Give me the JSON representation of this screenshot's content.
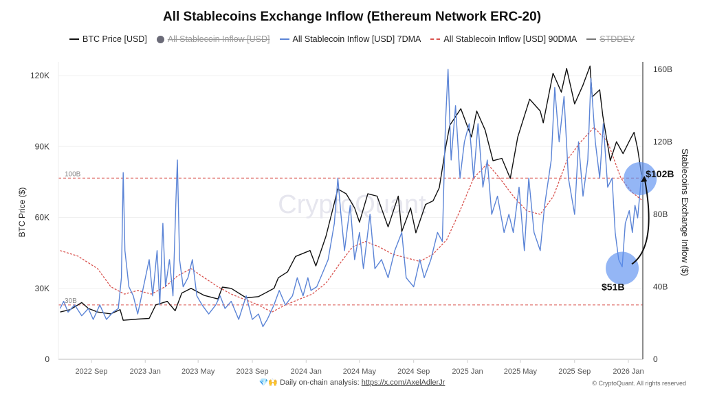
{
  "chart_data": {
    "type": "line",
    "title": "All Stablecoins Exchange Inflow (Ethereum Network ERC-20)",
    "ylabel_left": "BTC Price ($)",
    "ylabel_right": "Stablecoins Exchange Inflow ($)",
    "left_ticks": [
      "0",
      "30K",
      "60K",
      "90K",
      "120K"
    ],
    "left_tick_values": [
      0,
      30000,
      60000,
      90000,
      120000
    ],
    "right_ticks": [
      "0",
      "40B",
      "80B",
      "120B",
      "160B"
    ],
    "right_tick_values": [
      0,
      40,
      80,
      120,
      160
    ],
    "x_ticks": [
      "2022 Sep",
      "2023 Jan",
      "2023 May",
      "2023 Sep",
      "2024 Jan",
      "2024 May",
      "2024 Sep",
      "2025 Jan",
      "2025 May",
      "2025 Sep",
      "2026 Jan"
    ],
    "x_tick_dates": [
      "2022-09-01",
      "2023-01-01",
      "2023-05-01",
      "2023-09-01",
      "2024-01-01",
      "2024-05-01",
      "2024-09-01",
      "2025-01-01",
      "2025-05-01",
      "2025-09-01",
      "2026-01-01"
    ],
    "xlim": [
      "2022-06-22",
      "2026-01-31"
    ],
    "ylim_left": [
      0,
      124000
    ],
    "ylim_right": [
      0,
      165
    ],
    "grid": true,
    "legend_placement": "top",
    "legend": [
      {
        "label": "BTC Price [USD]",
        "color": "#111111",
        "style": "solid",
        "hidden": false
      },
      {
        "label": "All Stablecoin Inflow [USD]",
        "color": "#6b6b78",
        "style": "dot",
        "hidden": true
      },
      {
        "label": "All Stablecoin Inflow [USD] 7DMA",
        "color": "#5b84d6",
        "style": "solid",
        "hidden": false
      },
      {
        "label": "All Stablecoin Inflow [USD] 90DMA",
        "color": "#d9534f",
        "style": "dashed",
        "hidden": false
      },
      {
        "label": "STDDEV",
        "color": "#555555",
        "style": "solid",
        "hidden": true
      }
    ],
    "reference_lines": [
      {
        "label": "100B",
        "value": 100
      },
      {
        "label": "30B",
        "value": 30
      }
    ],
    "annotations": [
      {
        "label": "$102B",
        "value": 102,
        "date": "2026-01-31"
      },
      {
        "label": "$51B",
        "value": 51,
        "date": "2025-12-18"
      }
    ],
    "watermark": "CryptoQuant",
    "series": [
      {
        "name": "BTC Price [USD]",
        "axis": "left",
        "color": "#111111",
        "points": [
          [
            "2022-06-22",
            20000
          ],
          [
            "2022-07-15",
            21000
          ],
          [
            "2022-08-10",
            24000
          ],
          [
            "2022-08-25",
            21500
          ],
          [
            "2022-09-15",
            20000
          ],
          [
            "2022-10-15",
            19200
          ],
          [
            "2022-11-05",
            21000
          ],
          [
            "2022-11-12",
            16500
          ],
          [
            "2022-12-15",
            17000
          ],
          [
            "2023-01-10",
            17300
          ],
          [
            "2023-01-25",
            23000
          ],
          [
            "2023-02-20",
            24500
          ],
          [
            "2023-03-10",
            20500
          ],
          [
            "2023-03-25",
            28000
          ],
          [
            "2023-04-15",
            30000
          ],
          [
            "2023-05-15",
            27000
          ],
          [
            "2023-06-15",
            25500
          ],
          [
            "2023-06-25",
            30500
          ],
          [
            "2023-07-15",
            30000
          ],
          [
            "2023-08-18",
            26000
          ],
          [
            "2023-09-15",
            26500
          ],
          [
            "2023-10-20",
            30000
          ],
          [
            "2023-10-30",
            34500
          ],
          [
            "2023-11-20",
            37000
          ],
          [
            "2023-12-08",
            43500
          ],
          [
            "2024-01-10",
            46000
          ],
          [
            "2024-01-23",
            39500
          ],
          [
            "2024-02-15",
            52000
          ],
          [
            "2024-03-13",
            72000
          ],
          [
            "2024-04-01",
            70000
          ],
          [
            "2024-04-20",
            64000
          ],
          [
            "2024-05-01",
            58000
          ],
          [
            "2024-05-20",
            70000
          ],
          [
            "2024-06-10",
            69000
          ],
          [
            "2024-07-05",
            56000
          ],
          [
            "2024-07-28",
            69000
          ],
          [
            "2024-08-05",
            54000
          ],
          [
            "2024-08-25",
            64000
          ],
          [
            "2024-09-06",
            53500
          ],
          [
            "2024-09-28",
            65500
          ],
          [
            "2024-10-15",
            67000
          ],
          [
            "2024-10-29",
            72500
          ],
          [
            "2024-11-13",
            90000
          ],
          [
            "2024-11-22",
            99000
          ],
          [
            "2024-12-17",
            106000
          ],
          [
            "2025-01-10",
            94000
          ],
          [
            "2025-01-22",
            105000
          ],
          [
            "2025-02-10",
            97000
          ],
          [
            "2025-02-28",
            84000
          ],
          [
            "2025-03-20",
            85000
          ],
          [
            "2025-04-08",
            76500
          ],
          [
            "2025-04-25",
            94000
          ],
          [
            "2025-05-22",
            110000
          ],
          [
            "2025-06-15",
            105000
          ],
          [
            "2025-06-22",
            100000
          ],
          [
            "2025-07-14",
            121000
          ],
          [
            "2025-08-02",
            113000
          ],
          [
            "2025-08-14",
            123000
          ],
          [
            "2025-09-01",
            108000
          ],
          [
            "2025-09-20",
            116000
          ],
          [
            "2025-10-06",
            124000
          ],
          [
            "2025-10-11",
            111000
          ],
          [
            "2025-10-28",
            114000
          ],
          [
            "2025-11-04",
            103000
          ],
          [
            "2025-11-21",
            84000
          ],
          [
            "2025-12-05",
            92000
          ],
          [
            "2025-12-20",
            87000
          ],
          [
            "2026-01-05",
            93000
          ],
          [
            "2026-01-14",
            96000
          ],
          [
            "2026-01-22",
            89000
          ],
          [
            "2026-01-31",
            78000
          ]
        ]
      },
      {
        "name": "All Stablecoin Inflow [USD] 7DMA",
        "axis": "right",
        "color": "#5b84d6",
        "points": [
          [
            "2022-06-22",
            28
          ],
          [
            "2022-06-30",
            32
          ],
          [
            "2022-07-10",
            26
          ],
          [
            "2022-07-25",
            30
          ],
          [
            "2022-08-10",
            24
          ],
          [
            "2022-08-25",
            28
          ],
          [
            "2022-09-05",
            22
          ],
          [
            "2022-09-20",
            30
          ],
          [
            "2022-10-05",
            22
          ],
          [
            "2022-10-20",
            26
          ],
          [
            "2022-11-01",
            28
          ],
          [
            "2022-11-08",
            45
          ],
          [
            "2022-11-12",
            103
          ],
          [
            "2022-11-16",
            60
          ],
          [
            "2022-11-25",
            40
          ],
          [
            "2022-12-05",
            35
          ],
          [
            "2022-12-15",
            25
          ],
          [
            "2022-12-28",
            40
          ],
          [
            "2023-01-10",
            55
          ],
          [
            "2023-01-18",
            35
          ],
          [
            "2023-01-28",
            60
          ],
          [
            "2023-02-03",
            30
          ],
          [
            "2023-02-10",
            75
          ],
          [
            "2023-02-16",
            40
          ],
          [
            "2023-02-25",
            55
          ],
          [
            "2023-03-05",
            35
          ],
          [
            "2023-03-12",
            90
          ],
          [
            "2023-03-15",
            110
          ],
          [
            "2023-03-20",
            55
          ],
          [
            "2023-03-28",
            40
          ],
          [
            "2023-04-08",
            45
          ],
          [
            "2023-04-18",
            55
          ],
          [
            "2023-04-28",
            35
          ],
          [
            "2023-05-10",
            30
          ],
          [
            "2023-05-25",
            25
          ],
          [
            "2023-06-10",
            30
          ],
          [
            "2023-06-20",
            35
          ],
          [
            "2023-07-01",
            28
          ],
          [
            "2023-07-15",
            32
          ],
          [
            "2023-08-01",
            22
          ],
          [
            "2023-08-18",
            35
          ],
          [
            "2023-09-01",
            22
          ],
          [
            "2023-09-15",
            25
          ],
          [
            "2023-09-25",
            18
          ],
          [
            "2023-10-05",
            22
          ],
          [
            "2023-10-20",
            30
          ],
          [
            "2023-11-01",
            38
          ],
          [
            "2023-11-15",
            30
          ],
          [
            "2023-12-01",
            35
          ],
          [
            "2023-12-12",
            45
          ],
          [
            "2023-12-25",
            35
          ],
          [
            "2024-01-05",
            45
          ],
          [
            "2024-01-12",
            38
          ],
          [
            "2024-01-25",
            40
          ],
          [
            "2024-02-08",
            48
          ],
          [
            "2024-02-20",
            55
          ],
          [
            "2024-03-05",
            75
          ],
          [
            "2024-03-13",
            100
          ],
          [
            "2024-03-20",
            80
          ],
          [
            "2024-03-28",
            60
          ],
          [
            "2024-04-10",
            85
          ],
          [
            "2024-04-20",
            55
          ],
          [
            "2024-05-01",
            70
          ],
          [
            "2024-05-10",
            50
          ],
          [
            "2024-05-25",
            80
          ],
          [
            "2024-06-05",
            50
          ],
          [
            "2024-06-20",
            55
          ],
          [
            "2024-07-05",
            45
          ],
          [
            "2024-07-20",
            60
          ],
          [
            "2024-08-05",
            70
          ],
          [
            "2024-08-15",
            45
          ],
          [
            "2024-09-01",
            40
          ],
          [
            "2024-09-15",
            55
          ],
          [
            "2024-09-25",
            45
          ],
          [
            "2024-10-10",
            55
          ],
          [
            "2024-10-25",
            70
          ],
          [
            "2024-11-05",
            65
          ],
          [
            "2024-11-12",
            130
          ],
          [
            "2024-11-18",
            160
          ],
          [
            "2024-11-25",
            110
          ],
          [
            "2024-12-05",
            140
          ],
          [
            "2024-12-15",
            100
          ],
          [
            "2024-12-25",
            120
          ],
          [
            "2025-01-05",
            130
          ],
          [
            "2025-01-15",
            100
          ],
          [
            "2025-01-25",
            130
          ],
          [
            "2025-02-05",
            95
          ],
          [
            "2025-02-15",
            110
          ],
          [
            "2025-02-25",
            80
          ],
          [
            "2025-03-10",
            90
          ],
          [
            "2025-03-25",
            70
          ],
          [
            "2025-04-05",
            80
          ],
          [
            "2025-04-15",
            70
          ],
          [
            "2025-04-28",
            95
          ],
          [
            "2025-05-10",
            60
          ],
          [
            "2025-05-20",
            100
          ],
          [
            "2025-06-01",
            70
          ],
          [
            "2025-06-15",
            60
          ],
          [
            "2025-06-25",
            85
          ],
          [
            "2025-07-10",
            110
          ],
          [
            "2025-07-18",
            150
          ],
          [
            "2025-07-28",
            120
          ],
          [
            "2025-08-08",
            145
          ],
          [
            "2025-08-18",
            100
          ],
          [
            "2025-09-01",
            80
          ],
          [
            "2025-09-10",
            120
          ],
          [
            "2025-09-20",
            90
          ],
          [
            "2025-10-01",
            110
          ],
          [
            "2025-10-08",
            155
          ],
          [
            "2025-10-18",
            120
          ],
          [
            "2025-10-28",
            100
          ],
          [
            "2025-11-05",
            130
          ],
          [
            "2025-11-15",
            95
          ],
          [
            "2025-11-25",
            100
          ],
          [
            "2025-12-02",
            70
          ],
          [
            "2025-12-10",
            55
          ],
          [
            "2025-12-18",
            51
          ],
          [
            "2025-12-25",
            75
          ],
          [
            "2026-01-03",
            82
          ],
          [
            "2026-01-10",
            70
          ],
          [
            "2026-01-16",
            85
          ],
          [
            "2026-01-22",
            78
          ],
          [
            "2026-01-31",
            102
          ]
        ]
      },
      {
        "name": "All Stablecoin Inflow [USD] 90DMA",
        "axis": "right",
        "color": "#d9534f",
        "points": [
          [
            "2022-06-22",
            60
          ],
          [
            "2022-08-01",
            57
          ],
          [
            "2022-09-15",
            50
          ],
          [
            "2022-10-15",
            40
          ],
          [
            "2022-11-15",
            36
          ],
          [
            "2022-12-15",
            38
          ],
          [
            "2023-01-15",
            36
          ],
          [
            "2023-02-15",
            40
          ],
          [
            "2023-03-15",
            46
          ],
          [
            "2023-04-15",
            50
          ],
          [
            "2023-05-15",
            45
          ],
          [
            "2023-06-15",
            40
          ],
          [
            "2023-07-15",
            36
          ],
          [
            "2023-08-15",
            33
          ],
          [
            "2023-09-15",
            30
          ],
          [
            "2023-10-15",
            26
          ],
          [
            "2023-11-15",
            30
          ],
          [
            "2023-12-15",
            33
          ],
          [
            "2024-01-15",
            36
          ],
          [
            "2024-02-15",
            42
          ],
          [
            "2024-03-15",
            52
          ],
          [
            "2024-04-15",
            62
          ],
          [
            "2024-05-15",
            65
          ],
          [
            "2024-06-15",
            62
          ],
          [
            "2024-07-15",
            58
          ],
          [
            "2024-08-15",
            56
          ],
          [
            "2024-09-15",
            54
          ],
          [
            "2024-10-15",
            58
          ],
          [
            "2024-11-15",
            66
          ],
          [
            "2024-12-15",
            82
          ],
          [
            "2025-01-15",
            100
          ],
          [
            "2025-02-15",
            108
          ],
          [
            "2025-03-15",
            100
          ],
          [
            "2025-04-15",
            90
          ],
          [
            "2025-05-15",
            82
          ],
          [
            "2025-06-15",
            80
          ],
          [
            "2025-07-15",
            90
          ],
          [
            "2025-08-15",
            110
          ],
          [
            "2025-09-15",
            120
          ],
          [
            "2025-10-15",
            128
          ],
          [
            "2025-11-15",
            120
          ],
          [
            "2025-12-15",
            100
          ],
          [
            "2026-01-10",
            92
          ],
          [
            "2026-01-31",
            88
          ]
        ]
      }
    ]
  },
  "footer": {
    "emoji": "💎🙌",
    "text": "Daily on-chain analysis: ",
    "link": "https://x.com/AxelAdlerJr",
    "copyright": "© CryptoQuant. All rights reserved"
  }
}
